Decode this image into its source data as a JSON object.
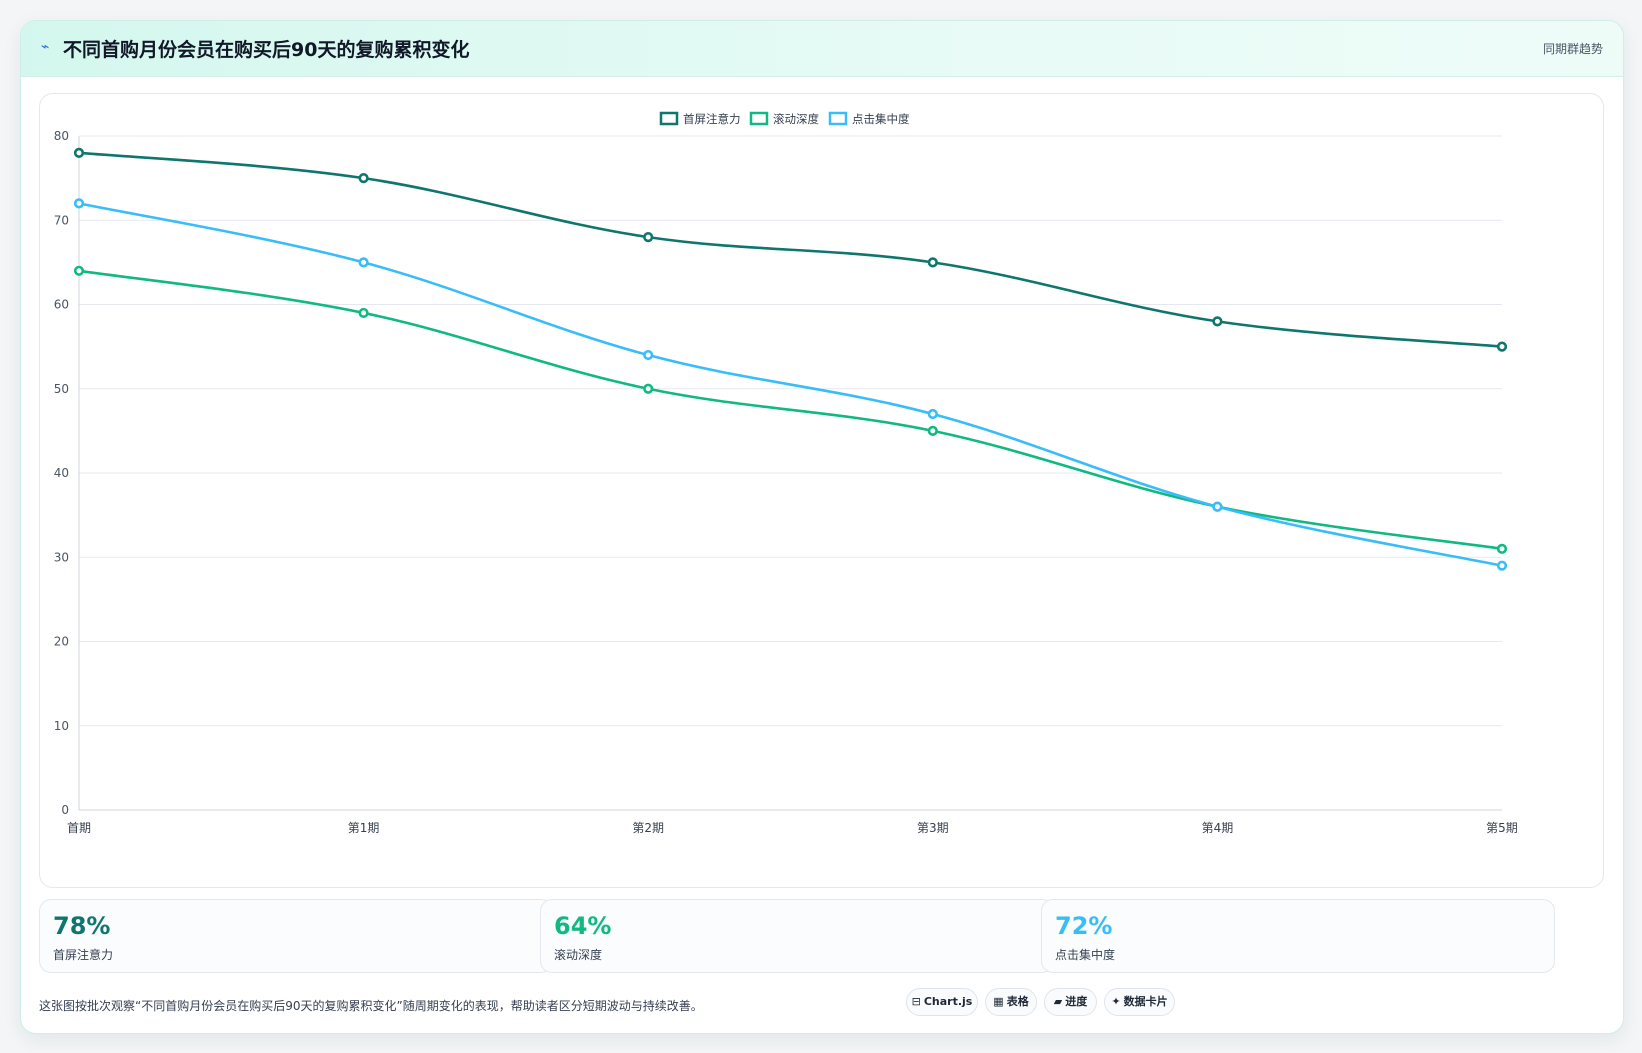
{
  "header": {
    "title": "不同首购月份会员在购买后90天的复购累积变化",
    "right_label": "同期群趋势",
    "icon": "trend-icon"
  },
  "chart_data": {
    "type": "line",
    "categories": [
      "首期",
      "第1期",
      "第2期",
      "第3期",
      "第4期",
      "第5期"
    ],
    "series": [
      {
        "name": "首屏注意力",
        "color": "#0f766e",
        "values": [
          78,
          75,
          68,
          65,
          58,
          55
        ]
      },
      {
        "name": "滚动深度",
        "color": "#10b981",
        "values": [
          64,
          59,
          50,
          45,
          36,
          31
        ]
      },
      {
        "name": "点击集中度",
        "color": "#38bdf8",
        "values": [
          72,
          65,
          54,
          47,
          36,
          29
        ]
      }
    ],
    "yticks": [
      0,
      10,
      20,
      30,
      40,
      50,
      60,
      70,
      80
    ],
    "ylim": [
      0,
      80
    ],
    "grid": true,
    "legend": "top-center"
  },
  "stats": [
    {
      "value": "78%",
      "label": "首屏注意力",
      "color": "#0f766e"
    },
    {
      "value": "64%",
      "label": "滚动深度",
      "color": "#10b981"
    },
    {
      "value": "72%",
      "label": "点击集中度",
      "color": "#38bdf8"
    }
  ],
  "footer": {
    "description": "这张图按批次观察“不同首购月份会员在购买后90天的复购累积变化”随周期变化的表现，帮助读者区分短期波动与持续改善。",
    "chips": [
      {
        "icon": "⊟",
        "label": "Chart.js"
      },
      {
        "icon": "▦",
        "label": "表格"
      },
      {
        "icon": "▰",
        "label": "进度"
      },
      {
        "icon": "✦",
        "label": "数据卡片"
      }
    ]
  }
}
